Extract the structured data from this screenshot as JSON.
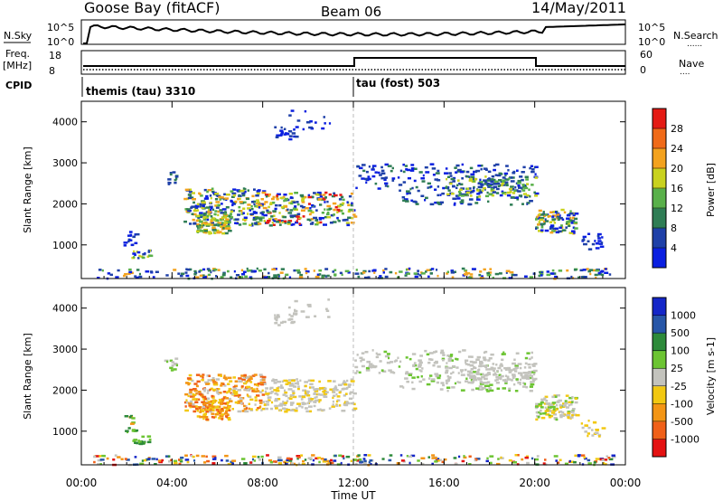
{
  "header": {
    "station": "Goose Bay (fitACF)",
    "beam": "Beam 06",
    "date": "14/May/2011"
  },
  "panel_labels": {
    "nsky": "N.Sky",
    "nsky_tick_hi": "10^5",
    "nsky_tick_lo": "10^0",
    "nsearch": "N.Search",
    "freq_l1": "Freq.",
    "freq_l2": "[MHz]",
    "freq_tick_hi": "18",
    "freq_tick_lo": "8",
    "nave": "Nave",
    "nave_tick_hi": "60",
    "nave_tick_lo": "0",
    "cpid": "CPID",
    "cpid_left": "themis (tau) 3310",
    "cpid_right": "tau (fost) 503"
  },
  "chart_data": [
    {
      "type": "heatmap",
      "name": "power",
      "ylabel": "Slant Range [km]",
      "yticks": [
        1000,
        2000,
        3000,
        4000
      ],
      "ylim": [
        180,
        4500
      ],
      "xlim": [
        "00:00",
        "24:00"
      ],
      "colorbar_label": "Power [dB]",
      "colorbar_ticks": [
        "4",
        "8",
        "12",
        "16",
        "20",
        "24",
        "28"
      ],
      "colorbar_colors": [
        "#0a1fe0",
        "#1e40a8",
        "#2f7d55",
        "#59b04a",
        "#c9d21e",
        "#f3a21e",
        "#f06a18",
        "#e41a14"
      ]
    },
    {
      "type": "heatmap",
      "name": "velocity",
      "ylabel": "Slant Range [km]",
      "yticks": [
        1000,
        2000,
        3000,
        4000
      ],
      "ylim": [
        180,
        4500
      ],
      "xlim": [
        "00:00",
        "24:00"
      ],
      "xlabel": "Time UT",
      "xticks": [
        "00:00",
        "04:00",
        "08:00",
        "12:00",
        "16:00",
        "20:00",
        "00:00"
      ],
      "colorbar_label": "Velocity [m s-1]",
      "colorbar_ticks": [
        "1000",
        "500",
        "100",
        "25",
        "-25",
        "-100",
        "-500",
        "-1000"
      ],
      "colorbar_colors": [
        "#1426c8",
        "#2756a8",
        "#2d8a3a",
        "#6cc432",
        "#c3c3bd",
        "#f2c811",
        "#f39515",
        "#f06018",
        "#e41212"
      ]
    }
  ]
}
